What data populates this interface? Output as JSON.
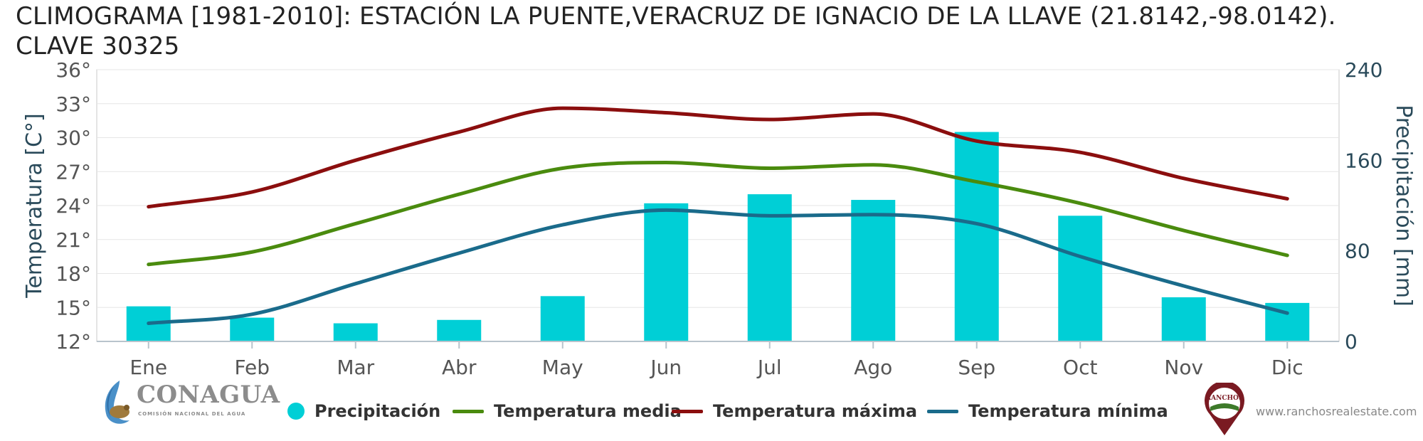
{
  "title": "CLIMOGRAMA [1981-2010]: ESTACIÓN LA PUENTE,VERACRUZ DE IGNACIO DE LA LLAVE (21.8142,-98.0142). CLAVE 30325",
  "logos": {
    "conagua": "CONAGUA",
    "conagua_sub": "COMISIÓN NACIONAL DEL AGUA",
    "ranchos": "RANCHOS",
    "ranchos_url": "www.ranchosrealestate.com"
  },
  "colors": {
    "precip": "#00cfd6",
    "media": "#4a8b0e",
    "max": "#8b0e0e",
    "min": "#1a6b8b"
  },
  "chart_data": {
    "type": "bar+line",
    "categories": [
      "Ene",
      "Feb",
      "Mar",
      "Abr",
      "May",
      "Jun",
      "Jul",
      "Ago",
      "Sep",
      "Oct",
      "Nov",
      "Dic"
    ],
    "y_left": {
      "label": "Temperatura [C°]",
      "min": 12,
      "max": 36,
      "ticks": [
        12,
        15,
        18,
        21,
        24,
        27,
        30,
        33,
        36
      ],
      "suffix": "°"
    },
    "y_right": {
      "label": "Precipitación [mm]",
      "min": 0,
      "max": 240,
      "ticks": [
        0,
        80,
        160,
        240
      ]
    },
    "series": [
      {
        "name": "Precipitación",
        "type": "bar",
        "axis": "right",
        "values": [
          31,
          21,
          16,
          19,
          40,
          122,
          130,
          125,
          185,
          111,
          39,
          34
        ]
      },
      {
        "name": "Temperatura media",
        "type": "line",
        "axis": "left",
        "values": [
          18.8,
          19.9,
          22.4,
          25.0,
          27.3,
          27.8,
          27.3,
          27.6,
          26.1,
          24.2,
          21.8,
          19.6
        ]
      },
      {
        "name": "Temperatura máxima",
        "type": "line",
        "axis": "left",
        "values": [
          23.9,
          25.2,
          28.0,
          30.5,
          32.6,
          32.2,
          31.6,
          32.1,
          29.7,
          28.7,
          26.4,
          24.6
        ]
      },
      {
        "name": "Temperatura mínima",
        "type": "line",
        "axis": "left",
        "values": [
          13.6,
          14.4,
          17.1,
          19.8,
          22.3,
          23.6,
          23.1,
          23.2,
          22.4,
          19.5,
          16.9,
          14.5
        ]
      }
    ],
    "legend_position": "bottom",
    "grid": true
  }
}
